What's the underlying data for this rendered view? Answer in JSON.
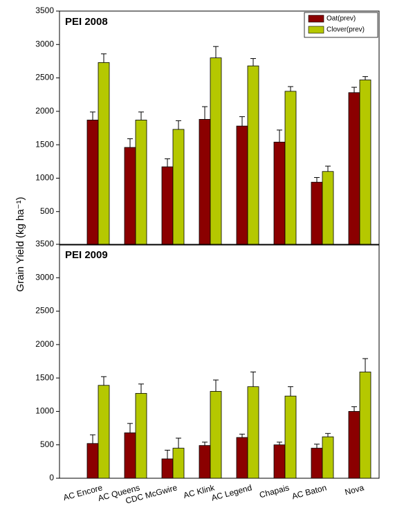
{
  "chart_data": [
    {
      "type": "bar",
      "title": "PEI 2008",
      "ylabel": "Grain Yield (kg ha⁻¹)",
      "ylim": [
        0,
        3500
      ],
      "yticks": [
        500,
        1000,
        1500,
        2000,
        2500,
        3000,
        3500
      ],
      "series": [
        {
          "name": "Oat(prev)",
          "color": "#8b0000",
          "values": [
            1870,
            1460,
            1170,
            1880,
            1780,
            1540,
            940,
            2280
          ],
          "errors": [
            120,
            130,
            120,
            190,
            140,
            180,
            70,
            80
          ]
        },
        {
          "name": "Clover(prev)",
          "color": "#b5c800",
          "values": [
            2730,
            1870,
            1730,
            2800,
            2680,
            2300,
            1100,
            2470
          ],
          "errors": [
            130,
            120,
            130,
            170,
            110,
            70,
            80,
            50
          ]
        }
      ]
    },
    {
      "type": "bar",
      "title": "PEI 2009",
      "categories": [
        "AC Encore",
        "AC Queens",
        "CDC McGwire",
        "AC Klink",
        "AC Legend",
        "Chapais",
        "AC Baton",
        "Nova"
      ],
      "ylim": [
        0,
        3500
      ],
      "yticks": [
        0,
        500,
        1000,
        1500,
        2000,
        2500,
        3000,
        3500
      ],
      "series": [
        {
          "color": "#8b0000",
          "values": [
            520,
            680,
            290,
            490,
            610,
            500,
            450,
            1000
          ],
          "errors": [
            130,
            140,
            130,
            50,
            50,
            40,
            60,
            70
          ]
        },
        {
          "color": "#b5c800",
          "values": [
            1390,
            1270,
            450,
            1300,
            1370,
            1230,
            620,
            1590
          ],
          "errors": [
            130,
            140,
            150,
            170,
            220,
            140,
            50,
            200
          ]
        }
      ]
    }
  ]
}
